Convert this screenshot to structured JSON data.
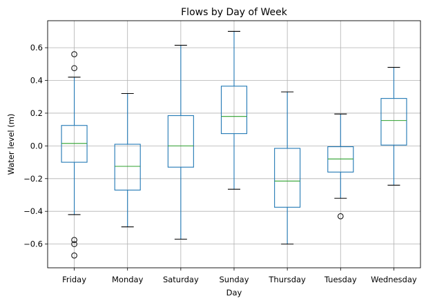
{
  "chart_data": {
    "type": "box",
    "title": "Flows by Day of Week",
    "xlabel": "Day",
    "ylabel": "Water level (m)",
    "ylim": [
      -0.745,
      0.765
    ],
    "yticks": [
      -0.6,
      -0.4,
      -0.2,
      0.0,
      0.2,
      0.4,
      0.6
    ],
    "ytick_labels": [
      "−0.6",
      "−0.4",
      "−0.2",
      "0.0",
      "0.2",
      "0.4",
      "0.6"
    ],
    "grid": true,
    "colors": {
      "box": "#1f77b4",
      "median": "#2ca02c",
      "whisker_cap": "#000000",
      "grid": "#b0b0b0",
      "outlier": "#000000"
    },
    "categories": [
      "Friday",
      "Monday",
      "Saturday",
      "Sunday",
      "Thursday",
      "Tuesday",
      "Wednesday"
    ],
    "boxes": [
      {
        "label": "Friday",
        "whislo": -0.42,
        "q1": -0.1,
        "med": 0.015,
        "q3": 0.125,
        "whishi": 0.42,
        "fliers": [
          0.56,
          0.475,
          -0.575,
          -0.6,
          -0.67
        ]
      },
      {
        "label": "Monday",
        "whislo": -0.495,
        "q1": -0.27,
        "med": -0.125,
        "q3": 0.01,
        "whishi": 0.32,
        "fliers": []
      },
      {
        "label": "Saturday",
        "whislo": -0.57,
        "q1": -0.13,
        "med": 0.0,
        "q3": 0.185,
        "whishi": 0.615,
        "fliers": []
      },
      {
        "label": "Sunday",
        "whislo": -0.265,
        "q1": 0.075,
        "med": 0.18,
        "q3": 0.365,
        "whishi": 0.7,
        "fliers": []
      },
      {
        "label": "Thursday",
        "whislo": -0.6,
        "q1": -0.375,
        "med": -0.215,
        "q3": -0.015,
        "whishi": 0.33,
        "fliers": []
      },
      {
        "label": "Tuesday",
        "whislo": -0.32,
        "q1": -0.16,
        "med": -0.08,
        "q3": -0.005,
        "whishi": 0.195,
        "fliers": [
          -0.43
        ]
      },
      {
        "label": "Wednesday",
        "whislo": -0.24,
        "q1": 0.005,
        "med": 0.155,
        "q3": 0.29,
        "whishi": 0.48,
        "fliers": []
      }
    ]
  }
}
